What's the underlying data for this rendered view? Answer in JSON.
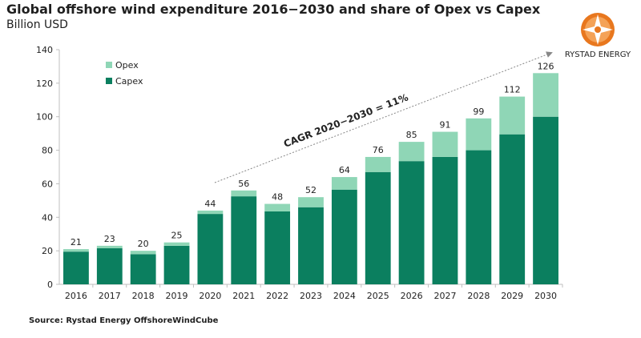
{
  "header": {
    "title": "Global offshore wind expenditure 2016−2030 and share of Opex vs Capex",
    "subtitle": "Billion USD"
  },
  "source": "Source: Rystad Energy OffshoreWindCube",
  "logo": {
    "text": "RYSTAD ENERGY",
    "icon": "rystad-compass-logo"
  },
  "annotation": {
    "text": "CAGR 2020−2030 = 11%"
  },
  "colors": {
    "capex": "#0b7f5f",
    "opex": "#8fd6b6",
    "arrow": "#888888",
    "axis": "#bfbfbf"
  },
  "chart_data": {
    "type": "bar",
    "stacked": true,
    "categories": [
      "2016",
      "2017",
      "2018",
      "2019",
      "2020",
      "2021",
      "2022",
      "2023",
      "2024",
      "2025",
      "2026",
      "2027",
      "2028",
      "2029",
      "2030"
    ],
    "series": [
      {
        "name": "Capex",
        "values": [
          19.5,
          21.5,
          18,
          23,
          42,
          52.5,
          43.5,
          46,
          56.5,
          67,
          73.5,
          76,
          80,
          89.5,
          100
        ]
      },
      {
        "name": "Opex",
        "values": [
          1.5,
          1.5,
          2,
          2,
          2,
          3.5,
          4.5,
          6,
          7.5,
          9,
          11.5,
          15,
          19,
          22.5,
          26
        ]
      }
    ],
    "totals": [
      21,
      23,
      20,
      25,
      44,
      56,
      48,
      52,
      64,
      76,
      85,
      91,
      99,
      112,
      126
    ],
    "yticks": [
      0,
      20,
      40,
      60,
      80,
      100,
      120,
      140
    ],
    "ylim": [
      0,
      140
    ],
    "legend": [
      "Opex",
      "Capex"
    ],
    "legend_position": "top-left"
  }
}
